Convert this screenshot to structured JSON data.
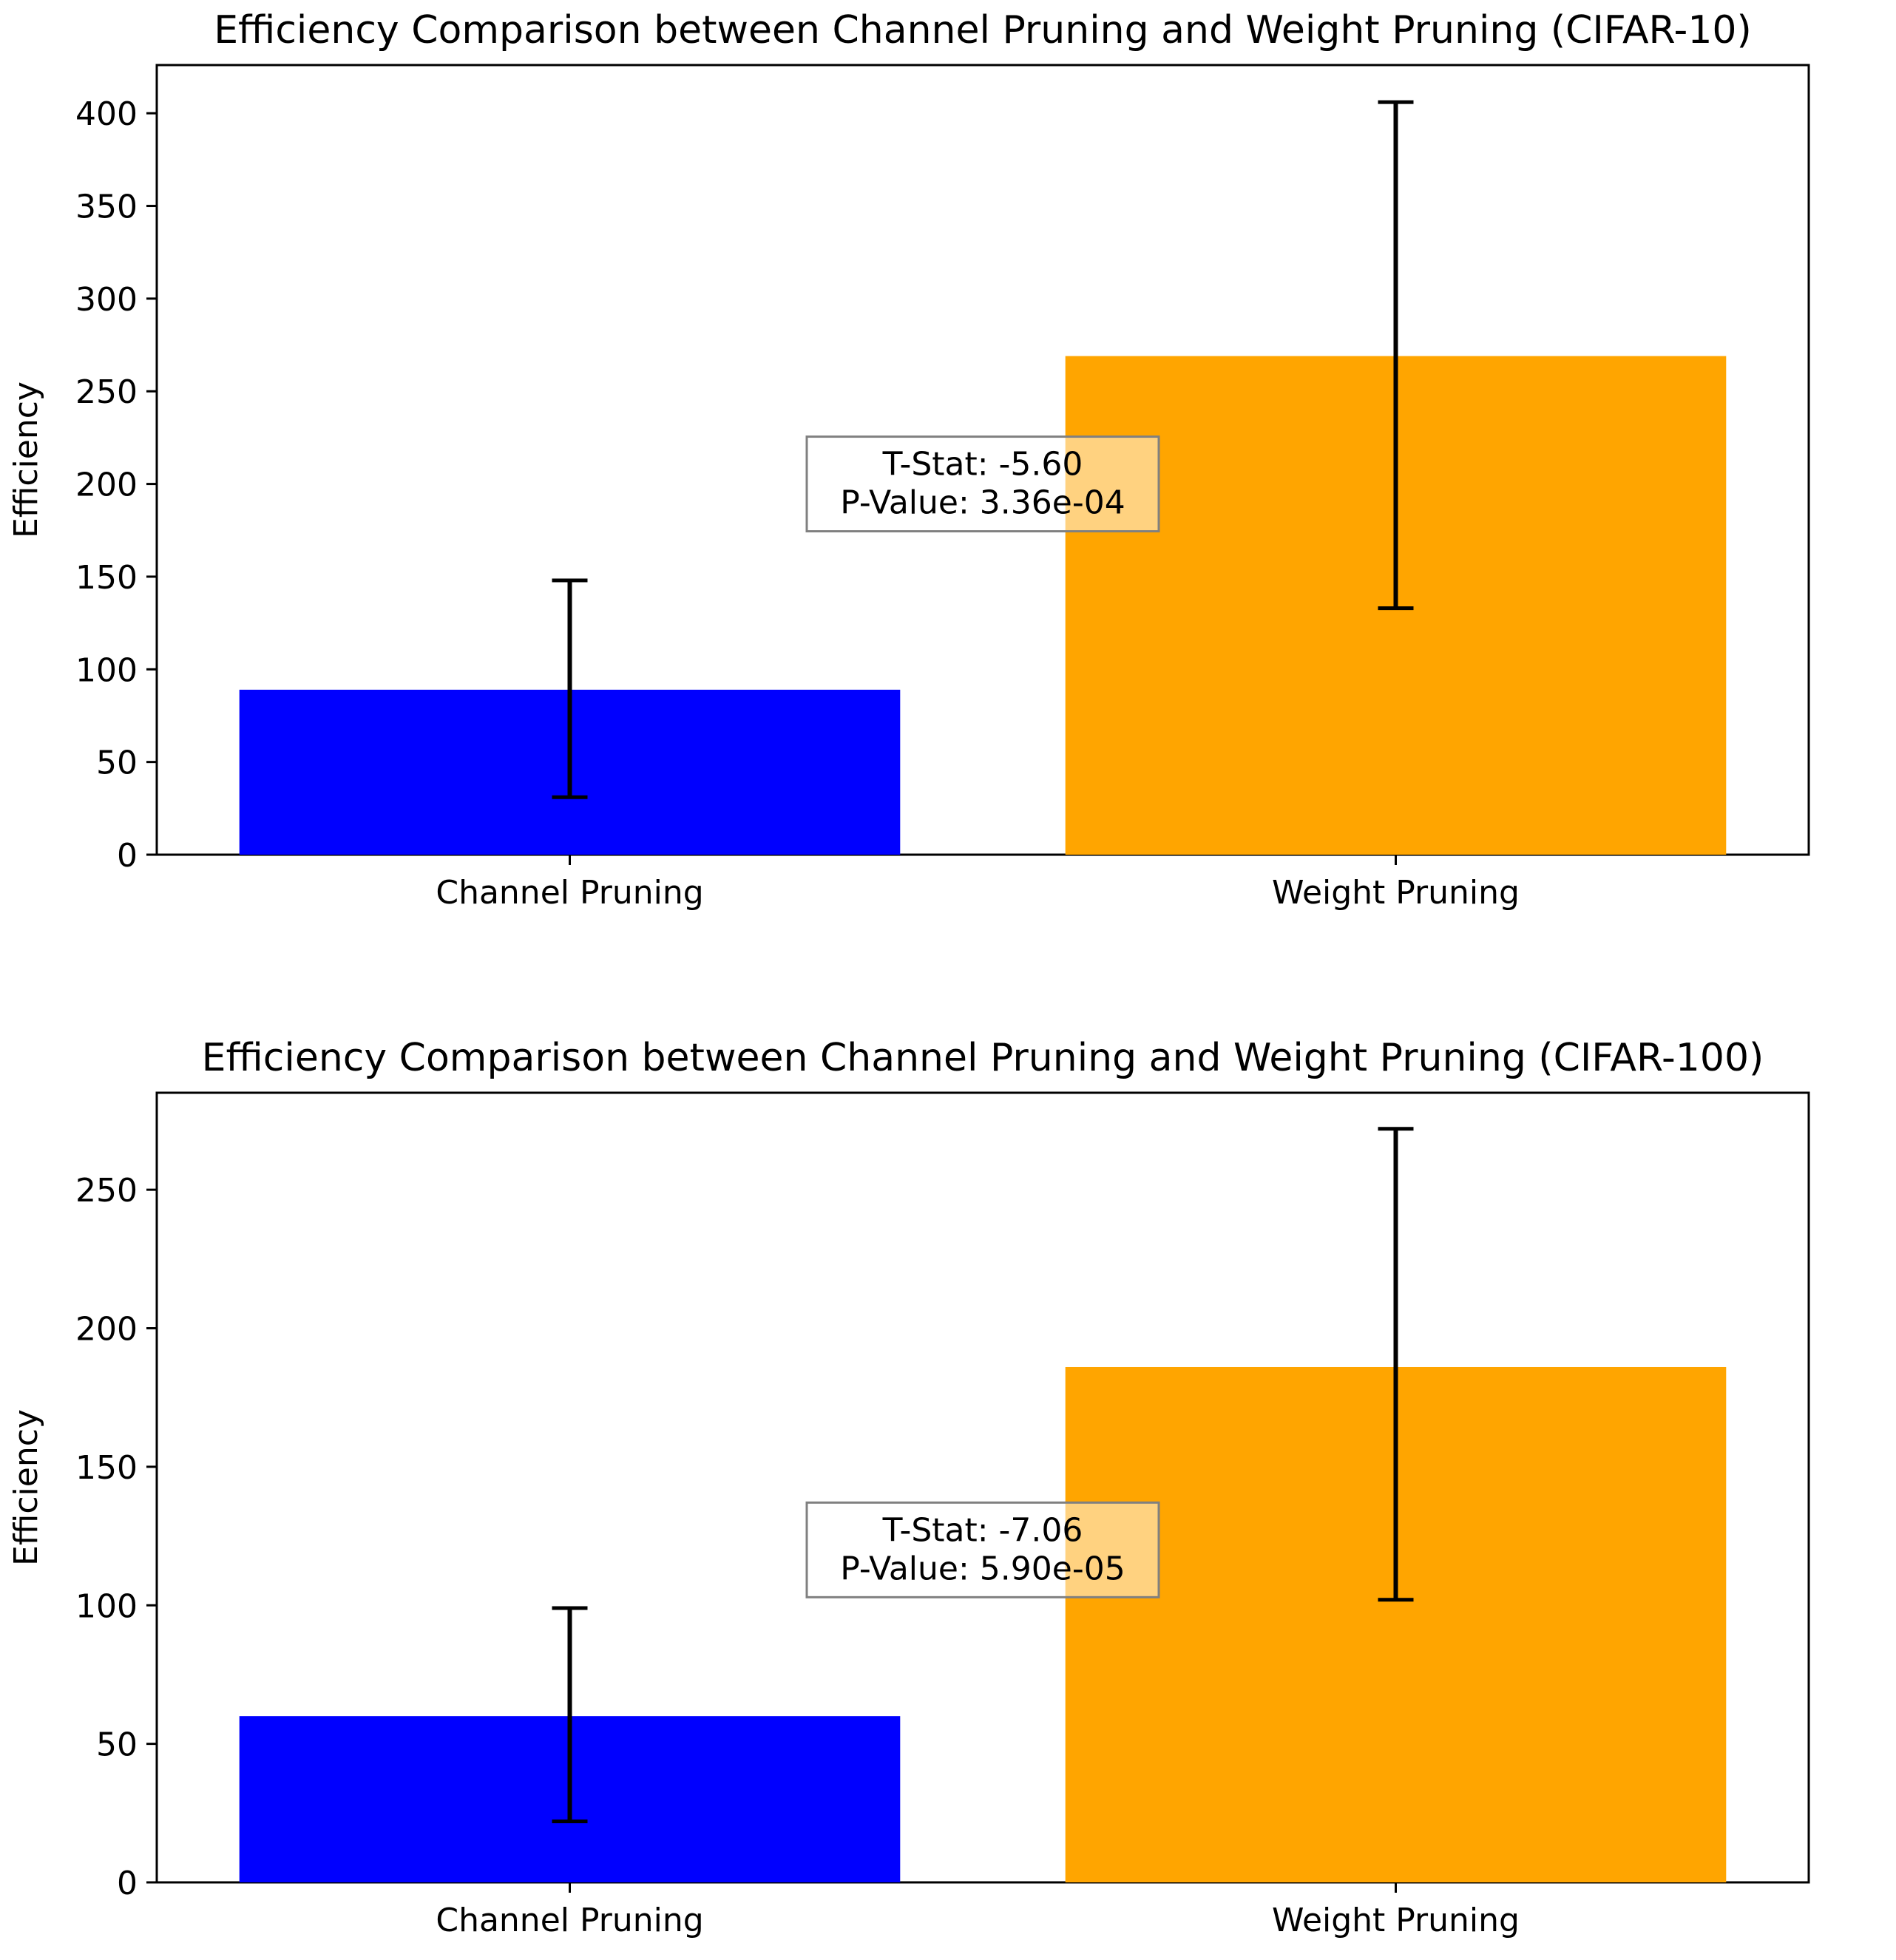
{
  "chart_data": [
    {
      "type": "bar",
      "title": "Efficiency Comparison between Channel Pruning and Weight Pruning (CIFAR-10)",
      "xlabel": "",
      "ylabel": "Efficiency",
      "categories": [
        "Channel Pruning",
        "Weight Pruning"
      ],
      "values": [
        89,
        269
      ],
      "error_low": [
        31,
        133
      ],
      "error_high": [
        148,
        406
      ],
      "bar_colors": [
        "#0000ff",
        "#ffa500"
      ],
      "ylim": [
        0,
        426
      ],
      "yticks": [
        0,
        50,
        100,
        150,
        200,
        250,
        300,
        350,
        400
      ],
      "annotation": {
        "line1": "T-Stat: -5.60",
        "line2": "P-Value: 3.36e-04",
        "x_position": 0.5,
        "y_value": 200
      }
    },
    {
      "type": "bar",
      "title": "Efficiency Comparison between Channel Pruning and Weight Pruning (CIFAR-100)",
      "xlabel": "",
      "ylabel": "Efficiency",
      "categories": [
        "Channel Pruning",
        "Weight Pruning"
      ],
      "values": [
        60,
        186
      ],
      "error_low": [
        22,
        102
      ],
      "error_high": [
        99,
        272
      ],
      "bar_colors": [
        "#0000ff",
        "#ffa500"
      ],
      "ylim": [
        0,
        285
      ],
      "yticks": [
        0,
        50,
        100,
        150,
        200,
        250
      ],
      "annotation": {
        "line1": "T-Stat: -7.06",
        "line2": "P-Value: 5.90e-05",
        "x_position": 0.5,
        "y_value": 120
      }
    }
  ]
}
